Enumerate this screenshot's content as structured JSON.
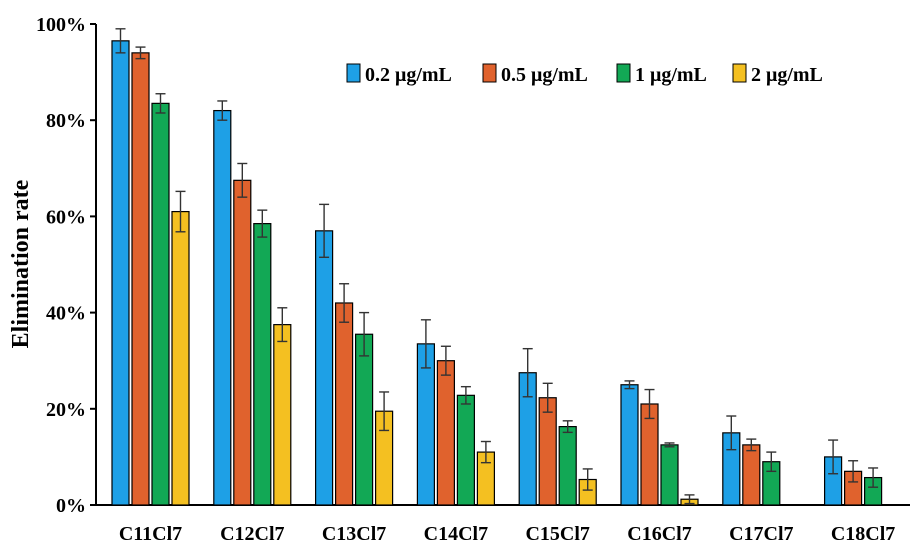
{
  "chart_data": {
    "type": "bar",
    "title": "",
    "xlabel": "",
    "ylabel": "Elimination rate",
    "ylim": [
      0,
      100
    ],
    "yticks": [
      "0%",
      "20%",
      "40%",
      "60%",
      "80%",
      "100%"
    ],
    "categories": [
      "C11Cl7",
      "C12Cl7",
      "C13Cl7",
      "C14Cl7",
      "C15Cl7",
      "C16Cl7",
      "C17Cl7",
      "C18Cl7"
    ],
    "legend_position": "top-right",
    "series": [
      {
        "name": "0.2 μg/mL",
        "color": "#1ea0e6",
        "values": [
          96.5,
          82,
          57,
          33.5,
          27.5,
          25,
          15,
          10
        ],
        "errors": [
          2.5,
          2,
          5.5,
          5,
          5,
          0.8,
          3.5,
          3.5
        ]
      },
      {
        "name": "0.5 μg/mL",
        "color": "#e0622d",
        "values": [
          94,
          67.5,
          42,
          30,
          22.3,
          21,
          12.5,
          7
        ],
        "errors": [
          1.2,
          3.5,
          4,
          3,
          3,
          3,
          1.2,
          2.2
        ]
      },
      {
        "name": "1 μg/mL",
        "color": "#12a855",
        "values": [
          83.5,
          58.5,
          35.5,
          22.8,
          16.3,
          12.5,
          9,
          5.7
        ],
        "errors": [
          2,
          2.8,
          4.5,
          1.8,
          1.2,
          0.4,
          2,
          2
        ]
      },
      {
        "name": "2 μg/mL",
        "color": "#f4c021",
        "values": [
          61,
          37.5,
          19.5,
          11,
          5.3,
          1.2,
          0,
          0
        ],
        "errors": [
          4.2,
          3.5,
          4,
          2.2,
          2.2,
          0.9,
          0,
          0
        ]
      }
    ]
  }
}
